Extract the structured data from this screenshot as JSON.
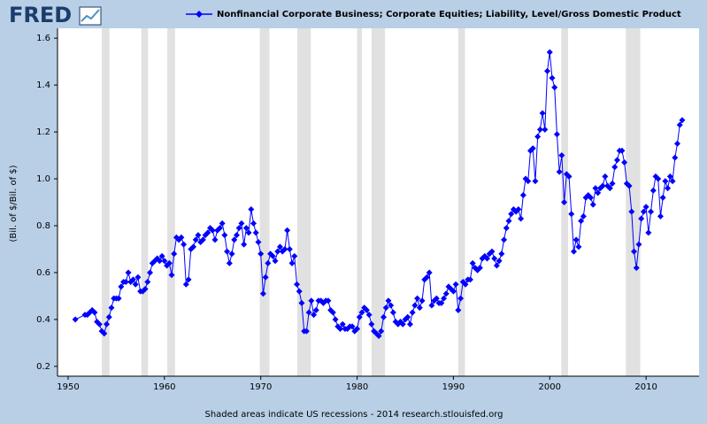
{
  "logo": "FRED",
  "chart_data": {
    "type": "line",
    "y_label": "(Bil. of $/Bil. of $)",
    "source_note": "Shaded areas indicate US recessions - 2014 research.stlouisfed.org",
    "xlim": [
      1948.9,
      2015.5
    ],
    "xticks": [
      1950,
      1960,
      1970,
      1980,
      1990,
      2000,
      2010
    ],
    "ylim": [
      0.158,
      1.642
    ],
    "yticks": [
      0.2,
      0.4,
      0.6,
      0.8,
      {
        "value": 1,
        "label": "1.0"
      },
      1.2,
      1.4,
      1.6
    ],
    "recessions": [
      [
        1953.5,
        1954.3
      ],
      [
        1957.6,
        1958.3
      ],
      [
        1960.3,
        1961.1
      ],
      [
        1969.9,
        1970.9
      ],
      [
        1973.8,
        1975.2
      ],
      [
        1980.0,
        1980.5
      ],
      [
        1981.5,
        1982.9
      ],
      [
        1990.5,
        1991.2
      ],
      [
        2001.2,
        2001.9
      ],
      [
        2007.9,
        2009.4
      ]
    ],
    "recession_color": "#e1e1e1",
    "x": [
      1950.75,
      1951.75,
      1952,
      1952.25,
      1952.5,
      1952.75,
      1953,
      1953.25,
      1953.5,
      1953.75,
      1954,
      1954.25,
      1954.5,
      1954.75,
      1955,
      1955.25,
      1955.5,
      1955.75,
      1956,
      1956.25,
      1956.5,
      1956.75,
      1957,
      1957.25,
      1957.5,
      1957.75,
      1958,
      1958.25,
      1958.5,
      1958.75,
      1959,
      1959.25,
      1959.5,
      1959.75,
      1960,
      1960.25,
      1960.5,
      1960.75,
      1961,
      1961.25,
      1961.5,
      1961.75,
      1962,
      1962.25,
      1962.5,
      1962.75,
      1963,
      1963.25,
      1963.5,
      1963.75,
      1964,
      1964.25,
      1964.5,
      1964.75,
      1965,
      1965.25,
      1965.5,
      1965.75,
      1966,
      1966.25,
      1966.5,
      1966.75,
      1967,
      1967.25,
      1967.5,
      1967.75,
      1968,
      1968.25,
      1968.5,
      1968.75,
      1969,
      1969.25,
      1969.5,
      1969.75,
      1970,
      1970.25,
      1970.5,
      1970.75,
      1971,
      1971.25,
      1971.5,
      1971.75,
      1972,
      1972.25,
      1972.5,
      1972.75,
      1973,
      1973.25,
      1973.5,
      1973.75,
      1974,
      1974.25,
      1974.5,
      1974.75,
      1975,
      1975.25,
      1975.5,
      1975.75,
      1976,
      1976.25,
      1976.5,
      1976.75,
      1977,
      1977.25,
      1977.5,
      1977.75,
      1978,
      1978.25,
      1978.5,
      1978.75,
      1979,
      1979.25,
      1979.5,
      1979.75,
      1980,
      1980.25,
      1980.5,
      1980.75,
      1981,
      1981.25,
      1981.5,
      1981.75,
      1982,
      1982.25,
      1982.5,
      1982.75,
      1983,
      1983.25,
      1983.5,
      1983.75,
      1984,
      1984.25,
      1984.5,
      1984.75,
      1985,
      1985.25,
      1985.5,
      1985.75,
      1986,
      1986.25,
      1986.5,
      1986.75,
      1987,
      1987.25,
      1987.5,
      1987.75,
      1988,
      1988.25,
      1988.5,
      1988.75,
      1989,
      1989.25,
      1989.5,
      1989.75,
      1990,
      1990.25,
      1990.5,
      1990.75,
      1991,
      1991.25,
      1991.5,
      1991.75,
      1992,
      1992.25,
      1992.5,
      1992.75,
      1993,
      1993.25,
      1993.5,
      1993.75,
      1994,
      1994.25,
      1994.5,
      1994.75,
      1995,
      1995.25,
      1995.5,
      1995.75,
      1996,
      1996.25,
      1996.5,
      1996.75,
      1997,
      1997.25,
      1997.5,
      1997.75,
      1998,
      1998.25,
      1998.5,
      1998.75,
      1999,
      1999.25,
      1999.5,
      1999.75,
      2000,
      2000.25,
      2000.5,
      2000.75,
      2001,
      2001.25,
      2001.5,
      2001.75,
      2002,
      2002.25,
      2002.5,
      2002.75,
      2003,
      2003.25,
      2003.5,
      2003.75,
      2004,
      2004.25,
      2004.5,
      2004.75,
      2005,
      2005.25,
      2005.5,
      2005.75,
      2006,
      2006.25,
      2006.5,
      2006.75,
      2007,
      2007.25,
      2007.5,
      2007.75,
      2008,
      2008.25,
      2008.5,
      2008.75,
      2009,
      2009.25,
      2009.5,
      2009.75,
      2010,
      2010.25,
      2010.5,
      2010.75,
      2011,
      2011.25,
      2011.5,
      2011.75,
      2012,
      2012.25,
      2012.5,
      2012.75,
      2013,
      2013.25,
      2013.5,
      2013.75
    ],
    "series": [
      {
        "name": "Nonfinancial Corporate Business; Corporate Equities; Liability, Level/Gross Domestic Product",
        "color": "#0000ff",
        "values": [
          0.4,
          0.42,
          0.42,
          0.43,
          0.44,
          0.43,
          0.39,
          0.38,
          0.35,
          0.34,
          0.38,
          0.41,
          0.45,
          0.49,
          0.49,
          0.49,
          0.54,
          0.56,
          0.56,
          0.6,
          0.56,
          0.57,
          0.55,
          0.58,
          0.52,
          0.52,
          0.53,
          0.56,
          0.6,
          0.64,
          0.65,
          0.66,
          0.65,
          0.67,
          0.65,
          0.63,
          0.64,
          0.59,
          0.68,
          0.75,
          0.74,
          0.75,
          0.72,
          0.55,
          0.57,
          0.7,
          0.71,
          0.74,
          0.76,
          0.73,
          0.74,
          0.76,
          0.77,
          0.79,
          0.78,
          0.74,
          0.78,
          0.79,
          0.81,
          0.76,
          0.69,
          0.64,
          0.68,
          0.74,
          0.76,
          0.79,
          0.81,
          0.72,
          0.79,
          0.77,
          0.87,
          0.81,
          0.77,
          0.73,
          0.68,
          0.51,
          0.58,
          0.64,
          0.68,
          0.67,
          0.65,
          0.69,
          0.71,
          0.69,
          0.7,
          0.78,
          0.7,
          0.64,
          0.67,
          0.55,
          0.52,
          0.47,
          0.35,
          0.35,
          0.43,
          0.48,
          0.42,
          0.44,
          0.48,
          0.48,
          0.47,
          0.48,
          0.48,
          0.44,
          0.43,
          0.4,
          0.37,
          0.36,
          0.38,
          0.36,
          0.36,
          0.37,
          0.37,
          0.35,
          0.36,
          0.41,
          0.43,
          0.45,
          0.44,
          0.42,
          0.38,
          0.35,
          0.34,
          0.33,
          0.35,
          0.41,
          0.45,
          0.48,
          0.46,
          0.43,
          0.39,
          0.38,
          0.39,
          0.38,
          0.4,
          0.41,
          0.38,
          0.43,
          0.46,
          0.49,
          0.45,
          0.48,
          0.57,
          0.58,
          0.6,
          0.46,
          0.48,
          0.49,
          0.47,
          0.47,
          0.49,
          0.51,
          0.54,
          0.53,
          0.52,
          0.55,
          0.44,
          0.49,
          0.56,
          0.55,
          0.57,
          0.57,
          0.64,
          0.62,
          0.61,
          0.62,
          0.66,
          0.67,
          0.66,
          0.68,
          0.69,
          0.66,
          0.63,
          0.65,
          0.68,
          0.74,
          0.79,
          0.82,
          0.85,
          0.87,
          0.86,
          0.87,
          0.83,
          0.93,
          1.0,
          0.99,
          1.12,
          1.13,
          0.99,
          1.18,
          1.21,
          1.28,
          1.21,
          1.46,
          1.54,
          1.43,
          1.39,
          1.19,
          1.03,
          1.1,
          0.9,
          1.02,
          1.01,
          0.85,
          0.69,
          0.74,
          0.71,
          0.82,
          0.84,
          0.92,
          0.93,
          0.92,
          0.89,
          0.96,
          0.94,
          0.96,
          0.97,
          1.01,
          0.97,
          0.96,
          0.98,
          1.05,
          1.08,
          1.12,
          1.12,
          1.07,
          0.98,
          0.97,
          0.86,
          0.69,
          0.62,
          0.72,
          0.83,
          0.86,
          0.88,
          0.77,
          0.86,
          0.95,
          1.01,
          1.0,
          0.84,
          0.92,
          0.99,
          0.96,
          1.01,
          0.99,
          1.09,
          1.15,
          1.23,
          1.25
        ]
      }
    ]
  }
}
